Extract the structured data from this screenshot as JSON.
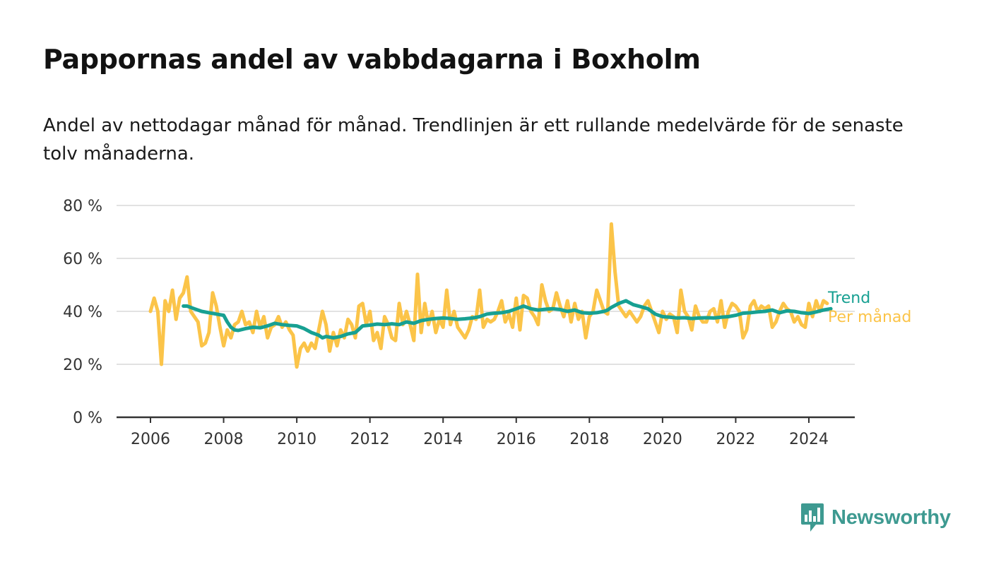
{
  "header": {
    "title": "Pappornas andel av vabbdagarna i Boxholm",
    "subtitle": "Andel av nettodagar månad för månad. Trendlinjen är ett rullande medelvärde för de senaste tolv månaderna."
  },
  "brand": {
    "name": "Newsworthy",
    "color": "#3e9a91",
    "icon": "newsworthy-logo-icon"
  },
  "chart_data": {
    "type": "line",
    "title": "Pappornas andel av vabbdagarna i Boxholm",
    "subtitle": "Andel av nettodagar månad för månad. Trendlinjen är ett rullande medelvärde för de senaste tolv månaderna.",
    "xlabel": "",
    "ylabel": "",
    "x_range": [
      2006,
      2024.5
    ],
    "ylim": [
      0,
      80
    ],
    "x_ticks": [
      {
        "value": 2006,
        "label": "2006"
      },
      {
        "value": 2008,
        "label": "2008"
      },
      {
        "value": 2010,
        "label": "2010"
      },
      {
        "value": 2012,
        "label": "2012"
      },
      {
        "value": 2014,
        "label": "2014"
      },
      {
        "value": 2016,
        "label": "2016"
      },
      {
        "value": 2018,
        "label": "2018"
      },
      {
        "value": 2020,
        "label": "2020"
      },
      {
        "value": 2022,
        "label": "2022"
      },
      {
        "value": 2024,
        "label": "2024"
      }
    ],
    "y_ticks": [
      {
        "value": 0,
        "label": "0 %"
      },
      {
        "value": 20,
        "label": "20 %"
      },
      {
        "value": 40,
        "label": "40 %"
      },
      {
        "value": 60,
        "label": "60 %"
      },
      {
        "value": 80,
        "label": "80 %"
      }
    ],
    "grid": true,
    "legend": "end-of-line labels, right",
    "series": [
      {
        "name": "Per månad",
        "color": "#fbc449",
        "points": [
          [
            2006.0,
            40
          ],
          [
            2006.1,
            45
          ],
          [
            2006.2,
            40
          ],
          [
            2006.3,
            20
          ],
          [
            2006.4,
            44
          ],
          [
            2006.5,
            40
          ],
          [
            2006.6,
            48
          ],
          [
            2006.7,
            37
          ],
          [
            2006.8,
            45
          ],
          [
            2006.9,
            47
          ],
          [
            2007.0,
            53
          ],
          [
            2007.1,
            40
          ],
          [
            2007.2,
            38
          ],
          [
            2007.3,
            36
          ],
          [
            2007.4,
            27
          ],
          [
            2007.5,
            28
          ],
          [
            2007.6,
            32
          ],
          [
            2007.7,
            47
          ],
          [
            2007.8,
            42
          ],
          [
            2007.9,
            34
          ],
          [
            2008.0,
            27
          ],
          [
            2008.1,
            33
          ],
          [
            2008.2,
            30
          ],
          [
            2008.3,
            35
          ],
          [
            2008.4,
            36
          ],
          [
            2008.5,
            40
          ],
          [
            2008.6,
            35
          ],
          [
            2008.7,
            36
          ],
          [
            2008.8,
            32
          ],
          [
            2008.9,
            40
          ],
          [
            2009.0,
            34
          ],
          [
            2009.1,
            38
          ],
          [
            2009.2,
            30
          ],
          [
            2009.3,
            34
          ],
          [
            2009.4,
            35
          ],
          [
            2009.5,
            38
          ],
          [
            2009.6,
            34
          ],
          [
            2009.7,
            36
          ],
          [
            2009.8,
            33
          ],
          [
            2009.9,
            31
          ],
          [
            2010.0,
            19
          ],
          [
            2010.1,
            26
          ],
          [
            2010.2,
            28
          ],
          [
            2010.3,
            25
          ],
          [
            2010.4,
            28
          ],
          [
            2010.5,
            26
          ],
          [
            2010.6,
            33
          ],
          [
            2010.7,
            40
          ],
          [
            2010.8,
            35
          ],
          [
            2010.9,
            25
          ],
          [
            2011.0,
            32
          ],
          [
            2011.1,
            27
          ],
          [
            2011.2,
            33
          ],
          [
            2011.3,
            30
          ],
          [
            2011.4,
            37
          ],
          [
            2011.5,
            35
          ],
          [
            2011.6,
            30
          ],
          [
            2011.7,
            42
          ],
          [
            2011.8,
            43
          ],
          [
            2011.9,
            35
          ],
          [
            2012.0,
            40
          ],
          [
            2012.1,
            29
          ],
          [
            2012.2,
            32
          ],
          [
            2012.3,
            26
          ],
          [
            2012.4,
            38
          ],
          [
            2012.5,
            35
          ],
          [
            2012.6,
            30
          ],
          [
            2012.7,
            29
          ],
          [
            2012.8,
            43
          ],
          [
            2012.9,
            35
          ],
          [
            2013.0,
            40
          ],
          [
            2013.1,
            35
          ],
          [
            2013.2,
            29
          ],
          [
            2013.3,
            54
          ],
          [
            2013.4,
            32
          ],
          [
            2013.5,
            43
          ],
          [
            2013.6,
            35
          ],
          [
            2013.7,
            40
          ],
          [
            2013.8,
            32
          ],
          [
            2013.9,
            37
          ],
          [
            2014.0,
            34
          ],
          [
            2014.1,
            48
          ],
          [
            2014.2,
            35
          ],
          [
            2014.3,
            40
          ],
          [
            2014.4,
            34
          ],
          [
            2014.5,
            32
          ],
          [
            2014.6,
            30
          ],
          [
            2014.7,
            33
          ],
          [
            2014.8,
            38
          ],
          [
            2014.9,
            37
          ],
          [
            2015.0,
            48
          ],
          [
            2015.1,
            34
          ],
          [
            2015.2,
            37
          ],
          [
            2015.3,
            36
          ],
          [
            2015.4,
            37
          ],
          [
            2015.5,
            40
          ],
          [
            2015.6,
            44
          ],
          [
            2015.7,
            36
          ],
          [
            2015.8,
            39
          ],
          [
            2015.9,
            34
          ],
          [
            2016.0,
            45
          ],
          [
            2016.1,
            33
          ],
          [
            2016.2,
            46
          ],
          [
            2016.3,
            45
          ],
          [
            2016.4,
            40
          ],
          [
            2016.5,
            38
          ],
          [
            2016.6,
            35
          ],
          [
            2016.7,
            50
          ],
          [
            2016.8,
            44
          ],
          [
            2016.9,
            40
          ],
          [
            2017.0,
            41
          ],
          [
            2017.1,
            47
          ],
          [
            2017.2,
            42
          ],
          [
            2017.3,
            38
          ],
          [
            2017.4,
            44
          ],
          [
            2017.5,
            36
          ],
          [
            2017.6,
            43
          ],
          [
            2017.7,
            37
          ],
          [
            2017.8,
            40
          ],
          [
            2017.9,
            30
          ],
          [
            2018.0,
            38
          ],
          [
            2018.1,
            40
          ],
          [
            2018.2,
            48
          ],
          [
            2018.3,
            44
          ],
          [
            2018.4,
            40
          ],
          [
            2018.5,
            39
          ],
          [
            2018.6,
            73
          ],
          [
            2018.7,
            55
          ],
          [
            2018.8,
            42
          ],
          [
            2018.9,
            40
          ],
          [
            2019.0,
            38
          ],
          [
            2019.1,
            40
          ],
          [
            2019.2,
            38
          ],
          [
            2019.3,
            36
          ],
          [
            2019.4,
            38
          ],
          [
            2019.5,
            42
          ],
          [
            2019.6,
            44
          ],
          [
            2019.7,
            40
          ],
          [
            2019.8,
            36
          ],
          [
            2019.9,
            32
          ],
          [
            2020.0,
            40
          ],
          [
            2020.1,
            37
          ],
          [
            2020.2,
            39
          ],
          [
            2020.3,
            38
          ],
          [
            2020.4,
            32
          ],
          [
            2020.5,
            48
          ],
          [
            2020.6,
            40
          ],
          [
            2020.7,
            38
          ],
          [
            2020.8,
            33
          ],
          [
            2020.9,
            42
          ],
          [
            2021.0,
            38
          ],
          [
            2021.1,
            36
          ],
          [
            2021.2,
            36
          ],
          [
            2021.3,
            40
          ],
          [
            2021.4,
            41
          ],
          [
            2021.5,
            36
          ],
          [
            2021.6,
            44
          ],
          [
            2021.7,
            34
          ],
          [
            2021.8,
            40
          ],
          [
            2021.9,
            43
          ],
          [
            2022.0,
            42
          ],
          [
            2022.1,
            40
          ],
          [
            2022.2,
            30
          ],
          [
            2022.3,
            33
          ],
          [
            2022.4,
            42
          ],
          [
            2022.5,
            44
          ],
          [
            2022.6,
            40
          ],
          [
            2022.7,
            42
          ],
          [
            2022.8,
            41
          ],
          [
            2022.9,
            42
          ],
          [
            2023.0,
            34
          ],
          [
            2023.1,
            36
          ],
          [
            2023.2,
            40
          ],
          [
            2023.3,
            43
          ],
          [
            2023.4,
            41
          ],
          [
            2023.5,
            40
          ],
          [
            2023.6,
            36
          ],
          [
            2023.7,
            38
          ],
          [
            2023.8,
            35
          ],
          [
            2023.9,
            34
          ],
          [
            2024.0,
            43
          ],
          [
            2024.1,
            38
          ],
          [
            2024.2,
            44
          ],
          [
            2024.3,
            40
          ],
          [
            2024.4,
            44
          ],
          [
            2024.5,
            43
          ]
        ]
      },
      {
        "name": "Trend",
        "color": "#17a092",
        "points": [
          [
            2006.9,
            42
          ],
          [
            2007.0,
            42
          ],
          [
            2007.2,
            41
          ],
          [
            2007.4,
            40
          ],
          [
            2007.6,
            39.5
          ],
          [
            2007.8,
            39
          ],
          [
            2008.0,
            38.5
          ],
          [
            2008.1,
            36
          ],
          [
            2008.2,
            34
          ],
          [
            2008.3,
            33
          ],
          [
            2008.4,
            32.8
          ],
          [
            2008.6,
            33.5
          ],
          [
            2008.8,
            34
          ],
          [
            2009.0,
            33.8
          ],
          [
            2009.2,
            34.5
          ],
          [
            2009.4,
            35.5
          ],
          [
            2009.6,
            35
          ],
          [
            2009.8,
            34.7
          ],
          [
            2010.0,
            34.5
          ],
          [
            2010.2,
            33.5
          ],
          [
            2010.4,
            32
          ],
          [
            2010.6,
            31
          ],
          [
            2010.7,
            30
          ],
          [
            2010.8,
            30.5
          ],
          [
            2011.0,
            30
          ],
          [
            2011.2,
            30.5
          ],
          [
            2011.4,
            31.5
          ],
          [
            2011.6,
            32
          ],
          [
            2011.8,
            34.5
          ],
          [
            2012.0,
            34.8
          ],
          [
            2012.2,
            35.2
          ],
          [
            2012.4,
            35
          ],
          [
            2012.6,
            35.3
          ],
          [
            2012.8,
            35
          ],
          [
            2013.0,
            36
          ],
          [
            2013.2,
            35.5
          ],
          [
            2013.4,
            36.5
          ],
          [
            2013.6,
            37
          ],
          [
            2013.8,
            37.3
          ],
          [
            2014.0,
            37.5
          ],
          [
            2014.2,
            37.3
          ],
          [
            2014.4,
            37
          ],
          [
            2014.6,
            37.2
          ],
          [
            2014.8,
            37.5
          ],
          [
            2015.0,
            38
          ],
          [
            2015.2,
            39
          ],
          [
            2015.4,
            39.3
          ],
          [
            2015.6,
            39.5
          ],
          [
            2015.8,
            40
          ],
          [
            2016.0,
            41
          ],
          [
            2016.2,
            42
          ],
          [
            2016.4,
            41
          ],
          [
            2016.6,
            40.5
          ],
          [
            2016.8,
            40.8
          ],
          [
            2017.0,
            41
          ],
          [
            2017.2,
            40.7
          ],
          [
            2017.4,
            40
          ],
          [
            2017.6,
            40.5
          ],
          [
            2017.8,
            39.5
          ],
          [
            2018.0,
            39.3
          ],
          [
            2018.2,
            39.5
          ],
          [
            2018.4,
            40
          ],
          [
            2018.5,
            40.5
          ],
          [
            2018.6,
            41.5
          ],
          [
            2018.8,
            43
          ],
          [
            2019.0,
            44
          ],
          [
            2019.2,
            42.5
          ],
          [
            2019.4,
            41.8
          ],
          [
            2019.6,
            41
          ],
          [
            2019.8,
            39
          ],
          [
            2020.0,
            38
          ],
          [
            2020.2,
            37.8
          ],
          [
            2020.4,
            37.5
          ],
          [
            2020.6,
            37.6
          ],
          [
            2020.8,
            37.3
          ],
          [
            2021.0,
            37.5
          ],
          [
            2021.2,
            37.6
          ],
          [
            2021.4,
            37.5
          ],
          [
            2021.6,
            37.8
          ],
          [
            2021.8,
            38
          ],
          [
            2022.0,
            38.5
          ],
          [
            2022.2,
            39.3
          ],
          [
            2022.4,
            39.5
          ],
          [
            2022.6,
            39.8
          ],
          [
            2022.8,
            40
          ],
          [
            2023.0,
            40.5
          ],
          [
            2023.2,
            39.5
          ],
          [
            2023.4,
            40.2
          ],
          [
            2023.6,
            40
          ],
          [
            2023.8,
            39.5
          ],
          [
            2024.0,
            39.2
          ],
          [
            2024.2,
            39.8
          ],
          [
            2024.4,
            40.5
          ],
          [
            2024.6,
            41
          ]
        ]
      }
    ]
  }
}
